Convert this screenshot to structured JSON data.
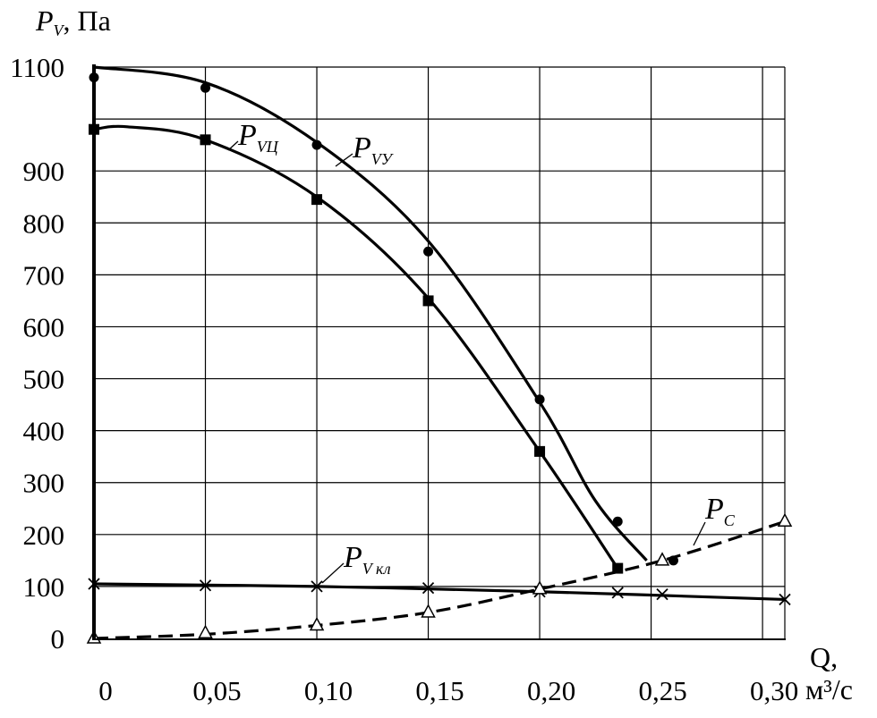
{
  "chart_data": {
    "type": "line",
    "title": "",
    "ylabel": {
      "symbol": "P",
      "sub": "V",
      "unit": ", Па"
    },
    "xlabel": {
      "line1": "Q,",
      "line2": "м³/с"
    },
    "xlim": [
      0,
      0.31
    ],
    "ylim": [
      0,
      1100
    ],
    "grid": true,
    "x_ticks": [
      {
        "value": 0,
        "label": "0"
      },
      {
        "value": 0.05,
        "label": "0,05"
      },
      {
        "value": 0.1,
        "label": "0,10"
      },
      {
        "value": 0.15,
        "label": "0,15"
      },
      {
        "value": 0.2,
        "label": "0,20"
      },
      {
        "value": 0.25,
        "label": "0,25"
      },
      {
        "value": 0.3,
        "label": "0,30"
      }
    ],
    "y_ticks": [
      {
        "value": 0,
        "label": "0"
      },
      {
        "value": 100,
        "label": "100"
      },
      {
        "value": 200,
        "label": "200"
      },
      {
        "value": 300,
        "label": "300"
      },
      {
        "value": 400,
        "label": "400"
      },
      {
        "value": 500,
        "label": "500"
      },
      {
        "value": 600,
        "label": "600"
      },
      {
        "value": 700,
        "label": "700"
      },
      {
        "value": 800,
        "label": "800"
      },
      {
        "value": 900,
        "label": "900"
      },
      {
        "value": 1000,
        "label": ""
      },
      {
        "value": 1100,
        "label": "1100"
      }
    ],
    "series": [
      {
        "name": {
          "main": "P",
          "sub": "VУ"
        },
        "marker": "circle",
        "dash": false,
        "points": [
          [
            0,
            1080
          ],
          [
            0.05,
            1060
          ],
          [
            0.1,
            950
          ],
          [
            0.15,
            745
          ],
          [
            0.2,
            460
          ],
          [
            0.235,
            225
          ],
          [
            0.26,
            150
          ]
        ],
        "curve": [
          [
            0,
            1100
          ],
          [
            0.05,
            1070
          ],
          [
            0.1,
            955
          ],
          [
            0.15,
            765
          ],
          [
            0.2,
            455
          ],
          [
            0.225,
            265
          ],
          [
            0.248,
            150
          ]
        ]
      },
      {
        "name": {
          "main": "P",
          "sub": "VЦ"
        },
        "marker": "square",
        "dash": false,
        "points": [
          [
            0,
            980
          ],
          [
            0.05,
            960
          ],
          [
            0.1,
            845
          ],
          [
            0.15,
            650
          ],
          [
            0.2,
            360
          ],
          [
            0.235,
            135
          ]
        ],
        "curve": [
          [
            0,
            980
          ],
          [
            0.015,
            985
          ],
          [
            0.05,
            960
          ],
          [
            0.1,
            850
          ],
          [
            0.15,
            655
          ],
          [
            0.2,
            360
          ],
          [
            0.235,
            135
          ]
        ]
      },
      {
        "name": {
          "main": "P",
          "sub": "V кл"
        },
        "marker": "x",
        "dash": false,
        "points": [
          [
            0,
            105
          ],
          [
            0.05,
            102
          ],
          [
            0.1,
            100
          ],
          [
            0.15,
            97
          ],
          [
            0.2,
            90
          ],
          [
            0.235,
            88
          ],
          [
            0.255,
            85
          ],
          [
            0.31,
            75
          ]
        ],
        "curve": [
          [
            0,
            105
          ],
          [
            0.1,
            100
          ],
          [
            0.2,
            90
          ],
          [
            0.31,
            75
          ]
        ]
      },
      {
        "name": {
          "main": "P",
          "sub": "C"
        },
        "marker": "triangle",
        "dash": true,
        "points": [
          [
            0,
            0
          ],
          [
            0.05,
            10
          ],
          [
            0.1,
            25
          ],
          [
            0.15,
            50
          ],
          [
            0.2,
            95
          ],
          [
            0.255,
            150
          ],
          [
            0.31,
            225
          ]
        ],
        "curve": [
          [
            0,
            0
          ],
          [
            0.05,
            8
          ],
          [
            0.1,
            25
          ],
          [
            0.15,
            50
          ],
          [
            0.2,
            95
          ],
          [
            0.255,
            150
          ],
          [
            0.31,
            225
          ]
        ]
      }
    ],
    "colors": {
      "line": "#000000",
      "grid": "#000000",
      "background": "#ffffff"
    }
  }
}
